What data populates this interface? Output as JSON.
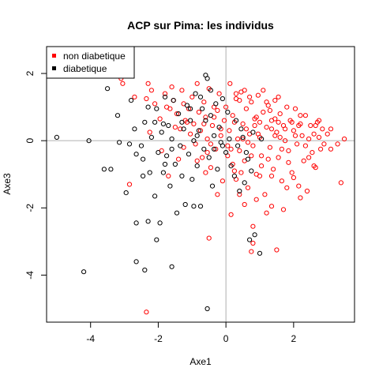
{
  "chart_data": {
    "type": "scatter",
    "title": "ACP sur Pima: les individus",
    "xlabel": "Axe1",
    "ylabel": "Axe3",
    "xlim": [
      -5.3,
      3.8
    ],
    "ylim": [
      -5.4,
      2.8
    ],
    "xticks": [
      -4,
      -2,
      0,
      2
    ],
    "xtick_labels": [
      "-4",
      "-2",
      "0",
      "2"
    ],
    "yticks": [
      -4,
      -2,
      0,
      2
    ],
    "ytick_labels": [
      "-4",
      "-2",
      "0",
      "2"
    ],
    "reference_lines": {
      "x": 0,
      "y": 0,
      "color": "#b0b0b0"
    },
    "legend_position": "top-left",
    "series": [
      {
        "name": "non diabetique",
        "color": "#ff0000",
        "points": [
          [
            -3.1,
            1.85
          ],
          [
            -3.05,
            1.7
          ],
          [
            -2.7,
            1.3
          ],
          [
            -2.3,
            1.7
          ],
          [
            -2.2,
            1.5
          ],
          [
            -2.35,
            1.25
          ],
          [
            -2.1,
            1.1
          ],
          [
            -1.95,
            0.65
          ],
          [
            -1.8,
            1.4
          ],
          [
            -1.75,
            1.0
          ],
          [
            -1.65,
            0.95
          ],
          [
            -1.6,
            1.6
          ],
          [
            -1.55,
            1.2
          ],
          [
            -1.5,
            0.4
          ],
          [
            -1.45,
            0.8
          ],
          [
            -1.3,
            1.5
          ],
          [
            -1.25,
            1.1
          ],
          [
            -1.2,
            0.6
          ],
          [
            -1.1,
            0.95
          ],
          [
            -1.05,
            0.2
          ],
          [
            -1.0,
            1.3
          ],
          [
            -0.95,
            0.5
          ],
          [
            -0.9,
            -0.1
          ],
          [
            -0.85,
            1.7
          ],
          [
            -0.8,
            0.85
          ],
          [
            -0.75,
            0.3
          ],
          [
            -0.7,
            -0.5
          ],
          [
            -0.65,
            1.15
          ],
          [
            -0.6,
            0.7
          ],
          [
            -0.55,
            0.05
          ],
          [
            -0.5,
            1.55
          ],
          [
            -0.45,
            -0.8
          ],
          [
            -0.4,
            0.45
          ],
          [
            -0.35,
            1.0
          ],
          [
            -0.3,
            -0.25
          ],
          [
            -0.25,
            0.9
          ],
          [
            -0.2,
            1.4
          ],
          [
            -0.15,
            0.15
          ],
          [
            -0.1,
            -1.2
          ],
          [
            -0.05,
            0.6
          ],
          [
            0.0,
            1.0
          ],
          [
            0.05,
            -0.45
          ],
          [
            0.1,
            0.3
          ],
          [
            0.12,
            1.7
          ],
          [
            0.15,
            -2.2
          ],
          [
            0.2,
            0.75
          ],
          [
            0.25,
            -0.9
          ],
          [
            0.3,
            1.25
          ],
          [
            0.35,
            0.05
          ],
          [
            0.4,
            -0.3
          ],
          [
            0.45,
            1.45
          ],
          [
            0.5,
            0.5
          ],
          [
            0.55,
            -0.6
          ],
          [
            0.6,
            0.95
          ],
          [
            0.65,
            -1.4
          ],
          [
            0.7,
            0.2
          ],
          [
            0.75,
            1.15
          ],
          [
            0.8,
            -0.15
          ],
          [
            0.85,
            0.65
          ],
          [
            0.9,
            -1.0
          ],
          [
            0.95,
            1.35
          ],
          [
            1.0,
            0.1
          ],
          [
            1.05,
            -0.45
          ],
          [
            1.1,
            0.85
          ],
          [
            1.15,
            -1.6
          ],
          [
            1.2,
            0.4
          ],
          [
            1.25,
            1.05
          ],
          [
            1.3,
            -0.2
          ],
          [
            1.35,
            0.6
          ],
          [
            1.4,
            -0.85
          ],
          [
            1.45,
            1.2
          ],
          [
            1.5,
            0.25
          ],
          [
            1.55,
            -0.5
          ],
          [
            1.6,
            0.8
          ],
          [
            1.65,
            -1.2
          ],
          [
            1.7,
            0.45
          ],
          [
            1.75,
            0.0
          ],
          [
            1.8,
            1.0
          ],
          [
            1.85,
            -0.3
          ],
          [
            1.9,
            0.6
          ],
          [
            1.95,
            -0.95
          ],
          [
            2.0,
            0.3
          ],
          [
            2.05,
            0.95
          ],
          [
            2.1,
            -0.1
          ],
          [
            2.15,
            -1.35
          ],
          [
            2.2,
            0.5
          ],
          [
            2.25,
            0.15
          ],
          [
            2.3,
            -0.6
          ],
          [
            2.35,
            0.75
          ],
          [
            2.4,
            -1.5
          ],
          [
            2.45,
            0.05
          ],
          [
            2.5,
            0.45
          ],
          [
            2.55,
            -0.35
          ],
          [
            2.6,
            0.2
          ],
          [
            2.65,
            -0.8
          ],
          [
            2.7,
            0.55
          ],
          [
            2.75,
            0.1
          ],
          [
            2.8,
            -0.25
          ],
          [
            2.85,
            0.35
          ],
          [
            3.0,
            0.2
          ],
          [
            3.1,
            0.35
          ],
          [
            3.3,
            -0.1
          ],
          [
            3.5,
            0.05
          ],
          [
            3.4,
            -1.25
          ],
          [
            2.6,
            -0.75
          ],
          [
            1.8,
            -1.4
          ],
          [
            1.2,
            -2.15
          ],
          [
            0.9,
            -1.75
          ],
          [
            0.8,
            -2.55
          ],
          [
            0.55,
            -1.9
          ],
          [
            0.8,
            -3.05
          ],
          [
            0.75,
            -3.3
          ],
          [
            1.5,
            -3.25
          ],
          [
            -0.5,
            -2.9
          ],
          [
            0.4,
            -1.6
          ],
          [
            -2.35,
            -5.1
          ],
          [
            -2.85,
            -1.3
          ],
          [
            -2.25,
            0.25
          ],
          [
            -1.9,
            -0.3
          ],
          [
            -1.7,
            -1.05
          ],
          [
            -1.4,
            -0.55
          ],
          [
            -0.6,
            -0.95
          ],
          [
            -0.25,
            -1.6
          ],
          [
            0.3,
            -1.15
          ],
          [
            0.2,
            -0.7
          ],
          [
            1.0,
            -1.05
          ],
          [
            1.35,
            -1.95
          ],
          [
            1.7,
            -2.05
          ],
          [
            2.2,
            -1.7
          ],
          [
            2.0,
            -1.1
          ],
          [
            1.55,
            1.3
          ],
          [
            1.1,
            1.5
          ],
          [
            0.7,
            1.3
          ],
          [
            0.4,
            1.2
          ],
          [
            1.3,
            0.9
          ],
          [
            0.9,
            0.7
          ],
          [
            1.45,
            0.15
          ],
          [
            2.15,
            0.45
          ],
          [
            2.75,
            0.6
          ],
          [
            2.9,
            -0.1
          ],
          [
            -1.25,
            -0.2
          ],
          [
            -0.55,
            -0.35
          ],
          [
            0.05,
            -0.15
          ],
          [
            0.5,
            0.05
          ],
          [
            1.25,
            -0.55
          ],
          [
            1.85,
            -0.65
          ],
          [
            2.45,
            -0.5
          ],
          [
            3.1,
            -0.25
          ],
          [
            0.95,
            0.2
          ],
          [
            1.6,
            0.1
          ],
          [
            1.2,
            1.15
          ],
          [
            0.55,
            1.5
          ],
          [
            0.3,
            1.4
          ],
          [
            2.2,
            0.75
          ],
          [
            1.95,
            0.55
          ],
          [
            1.75,
            0.35
          ],
          [
            1.55,
            0.55
          ],
          [
            1.35,
            0.35
          ],
          [
            0.85,
            0.45
          ],
          [
            0.65,
            -0.05
          ],
          [
            -0.35,
            0.7
          ],
          [
            -0.65,
            0.5
          ],
          [
            -1.35,
            0.35
          ],
          [
            -0.85,
            -0.6
          ],
          [
            0.15,
            -0.25
          ],
          [
            0.45,
            -0.95
          ],
          [
            0.75,
            -0.45
          ],
          [
            1.05,
            -0.75
          ],
          [
            1.35,
            -1.05
          ],
          [
            1.65,
            -0.25
          ],
          [
            2.35,
            -0.15
          ],
          [
            2.65,
            0.45
          ],
          [
            2.05,
            0.15
          ],
          [
            1.45,
            0.65
          ],
          [
            1.0,
            0.55
          ],
          [
            0.6,
            0.35
          ],
          [
            0.25,
            0.55
          ],
          [
            -0.15,
            0.35
          ],
          [
            -0.45,
            -0.1
          ],
          [
            -1.15,
            0.55
          ]
        ]
      },
      {
        "name": "diabetique",
        "color": "#000000",
        "points": [
          [
            -5.0,
            0.1
          ],
          [
            -4.05,
            0.0
          ],
          [
            -4.2,
            -3.9
          ],
          [
            -3.6,
            -0.85
          ],
          [
            -3.4,
            -0.85
          ],
          [
            -3.5,
            1.55
          ],
          [
            -3.2,
            0.75
          ],
          [
            -3.15,
            -0.05
          ],
          [
            -2.95,
            -1.55
          ],
          [
            -2.85,
            -0.1
          ],
          [
            -2.8,
            1.2
          ],
          [
            -2.7,
            0.35
          ],
          [
            -2.65,
            -0.4
          ],
          [
            -2.5,
            -0.15
          ],
          [
            -2.45,
            -1.05
          ],
          [
            -2.4,
            0.55
          ],
          [
            -2.4,
            -3.85
          ],
          [
            -2.3,
            -2.4
          ],
          [
            -2.25,
            -0.95
          ],
          [
            -2.2,
            0.1
          ],
          [
            -2.1,
            -1.65
          ],
          [
            -2.05,
            0.95
          ],
          [
            -2.0,
            -0.35
          ],
          [
            -1.95,
            -2.45
          ],
          [
            -1.9,
            0.25
          ],
          [
            -1.85,
            -0.95
          ],
          [
            -1.8,
            1.3
          ],
          [
            -1.75,
            -0.45
          ],
          [
            -1.7,
            0.45
          ],
          [
            -1.65,
            -1.35
          ],
          [
            -1.6,
            0.05
          ],
          [
            -1.55,
            1.2
          ],
          [
            -1.5,
            -0.7
          ],
          [
            -1.45,
            -2.15
          ],
          [
            -1.4,
            0.8
          ],
          [
            -1.35,
            -0.15
          ],
          [
            -1.3,
            -1.05
          ],
          [
            -1.25,
            0.35
          ],
          [
            -1.2,
            -1.9
          ],
          [
            -1.15,
            1.05
          ],
          [
            -1.1,
            -0.4
          ],
          [
            -1.05,
            0.6
          ],
          [
            -1.0,
            -1.15
          ],
          [
            -0.95,
            0.0
          ],
          [
            -0.9,
            1.4
          ],
          [
            -0.85,
            -0.75
          ],
          [
            -0.8,
            0.3
          ],
          [
            -0.75,
            -1.95
          ],
          [
            -0.7,
            0.95
          ],
          [
            -0.65,
            -0.25
          ],
          [
            -0.6,
            1.95
          ],
          [
            -0.55,
            1.85
          ],
          [
            -0.5,
            -0.5
          ],
          [
            -0.45,
            0.75
          ],
          [
            -0.4,
            -1.35
          ],
          [
            -0.35,
            0.15
          ],
          [
            -0.3,
            1.1
          ],
          [
            -0.25,
            -0.85
          ],
          [
            -0.2,
            0.4
          ],
          [
            -0.15,
            -0.05
          ],
          [
            -0.1,
            1.25
          ],
          [
            0.0,
            -0.35
          ],
          [
            0.05,
            0.85
          ],
          [
            0.15,
            -0.75
          ],
          [
            0.25,
            -1.05
          ],
          [
            0.35,
            -0.15
          ],
          [
            0.4,
            -1.5
          ],
          [
            0.45,
            0.35
          ],
          [
            0.55,
            -1.25
          ],
          [
            0.65,
            -0.55
          ],
          [
            0.75,
            -0.9
          ],
          [
            0.85,
            -2.8
          ],
          [
            0.7,
            -2.95
          ],
          [
            1.0,
            -3.35
          ],
          [
            -1.6,
            -3.75
          ],
          [
            -2.05,
            -2.95
          ],
          [
            -2.65,
            -2.45
          ],
          [
            -2.65,
            -3.6
          ],
          [
            -0.55,
            -5.0
          ],
          [
            -0.95,
            -1.95
          ],
          [
            -1.8,
            -0.7
          ],
          [
            -2.1,
            0.55
          ],
          [
            -1.85,
            0.5
          ],
          [
            -2.3,
            1.0
          ],
          [
            -2.45,
            -0.55
          ],
          [
            -1.6,
            -0.25
          ],
          [
            -1.3,
            0.55
          ],
          [
            -0.85,
            0.15
          ],
          [
            -0.6,
            0.6
          ],
          [
            -0.35,
            -0.25
          ],
          [
            -0.1,
            -0.15
          ],
          [
            0.1,
            0.05
          ],
          [
            0.3,
            0.6
          ],
          [
            0.5,
            0.1
          ],
          [
            0.6,
            -0.35
          ],
          [
            0.8,
            0.25
          ],
          [
            1.05,
            0.05
          ],
          [
            -1.05,
            0.95
          ],
          [
            -0.75,
            1.3
          ],
          [
            -0.45,
            1.5
          ]
        ]
      }
    ]
  }
}
